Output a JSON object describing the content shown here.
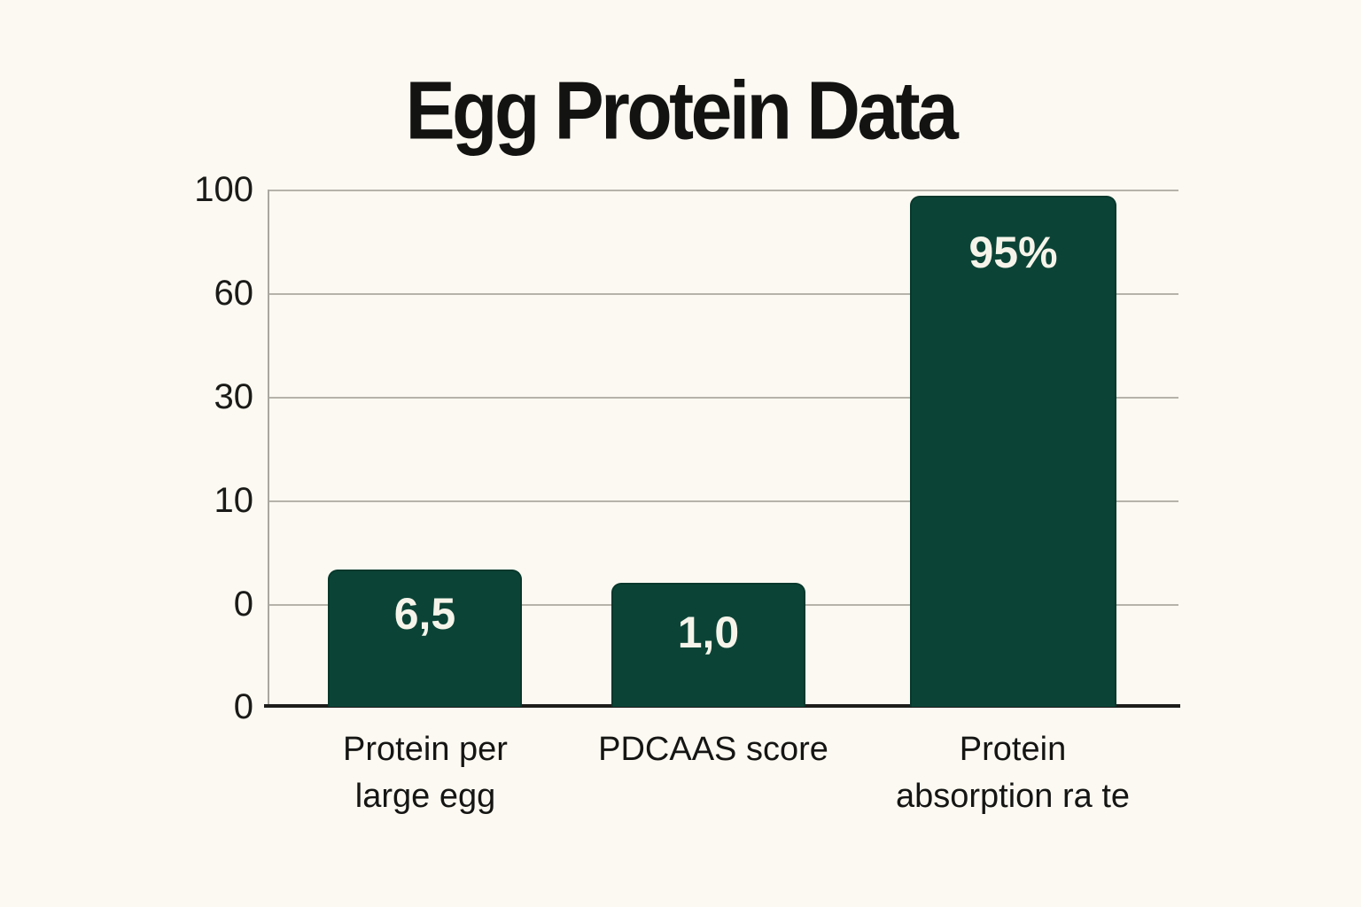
{
  "chart_data": {
    "type": "bar",
    "title": "Egg Protein Data",
    "categories": [
      "Protein per large egg",
      "PDCAAS score",
      "Protein absorption ra te"
    ],
    "values": [
      6.5,
      1.0,
      95
    ],
    "value_labels": [
      "6,5",
      "1,0",
      "95%"
    ],
    "y_tick_labels": [
      "100",
      "60",
      "30",
      "10",
      "0",
      "0"
    ],
    "xlabel": "",
    "ylabel": "",
    "axis_note": "y ticks equally spaced but non-linear: 100, 60, 30, 10, 0, 0",
    "grid": "horizontal gridlines on",
    "legend": "none",
    "bars": [
      {
        "category": "Protein per large egg",
        "category_lines": [
          "Protein per",
          "large egg"
        ],
        "value": 6.5,
        "value_label": "6,5"
      },
      {
        "category": "PDCAAS score",
        "category_lines": [
          "PDCAAS score"
        ],
        "value": 1.0,
        "value_label": "1,0"
      },
      {
        "category": "Protein absorption ra te",
        "category_lines": [
          "Protein",
          "absorption ra te"
        ],
        "value": 95,
        "value_label": "95%"
      }
    ],
    "colors": {
      "background": "#fbf9f1",
      "bar": "#0b4437",
      "bar_border": "#08382c",
      "gridline": "#b6b3ab",
      "baseline": "#1d1d1b",
      "text": "#151514",
      "value_text": "#f6f4ea"
    }
  }
}
